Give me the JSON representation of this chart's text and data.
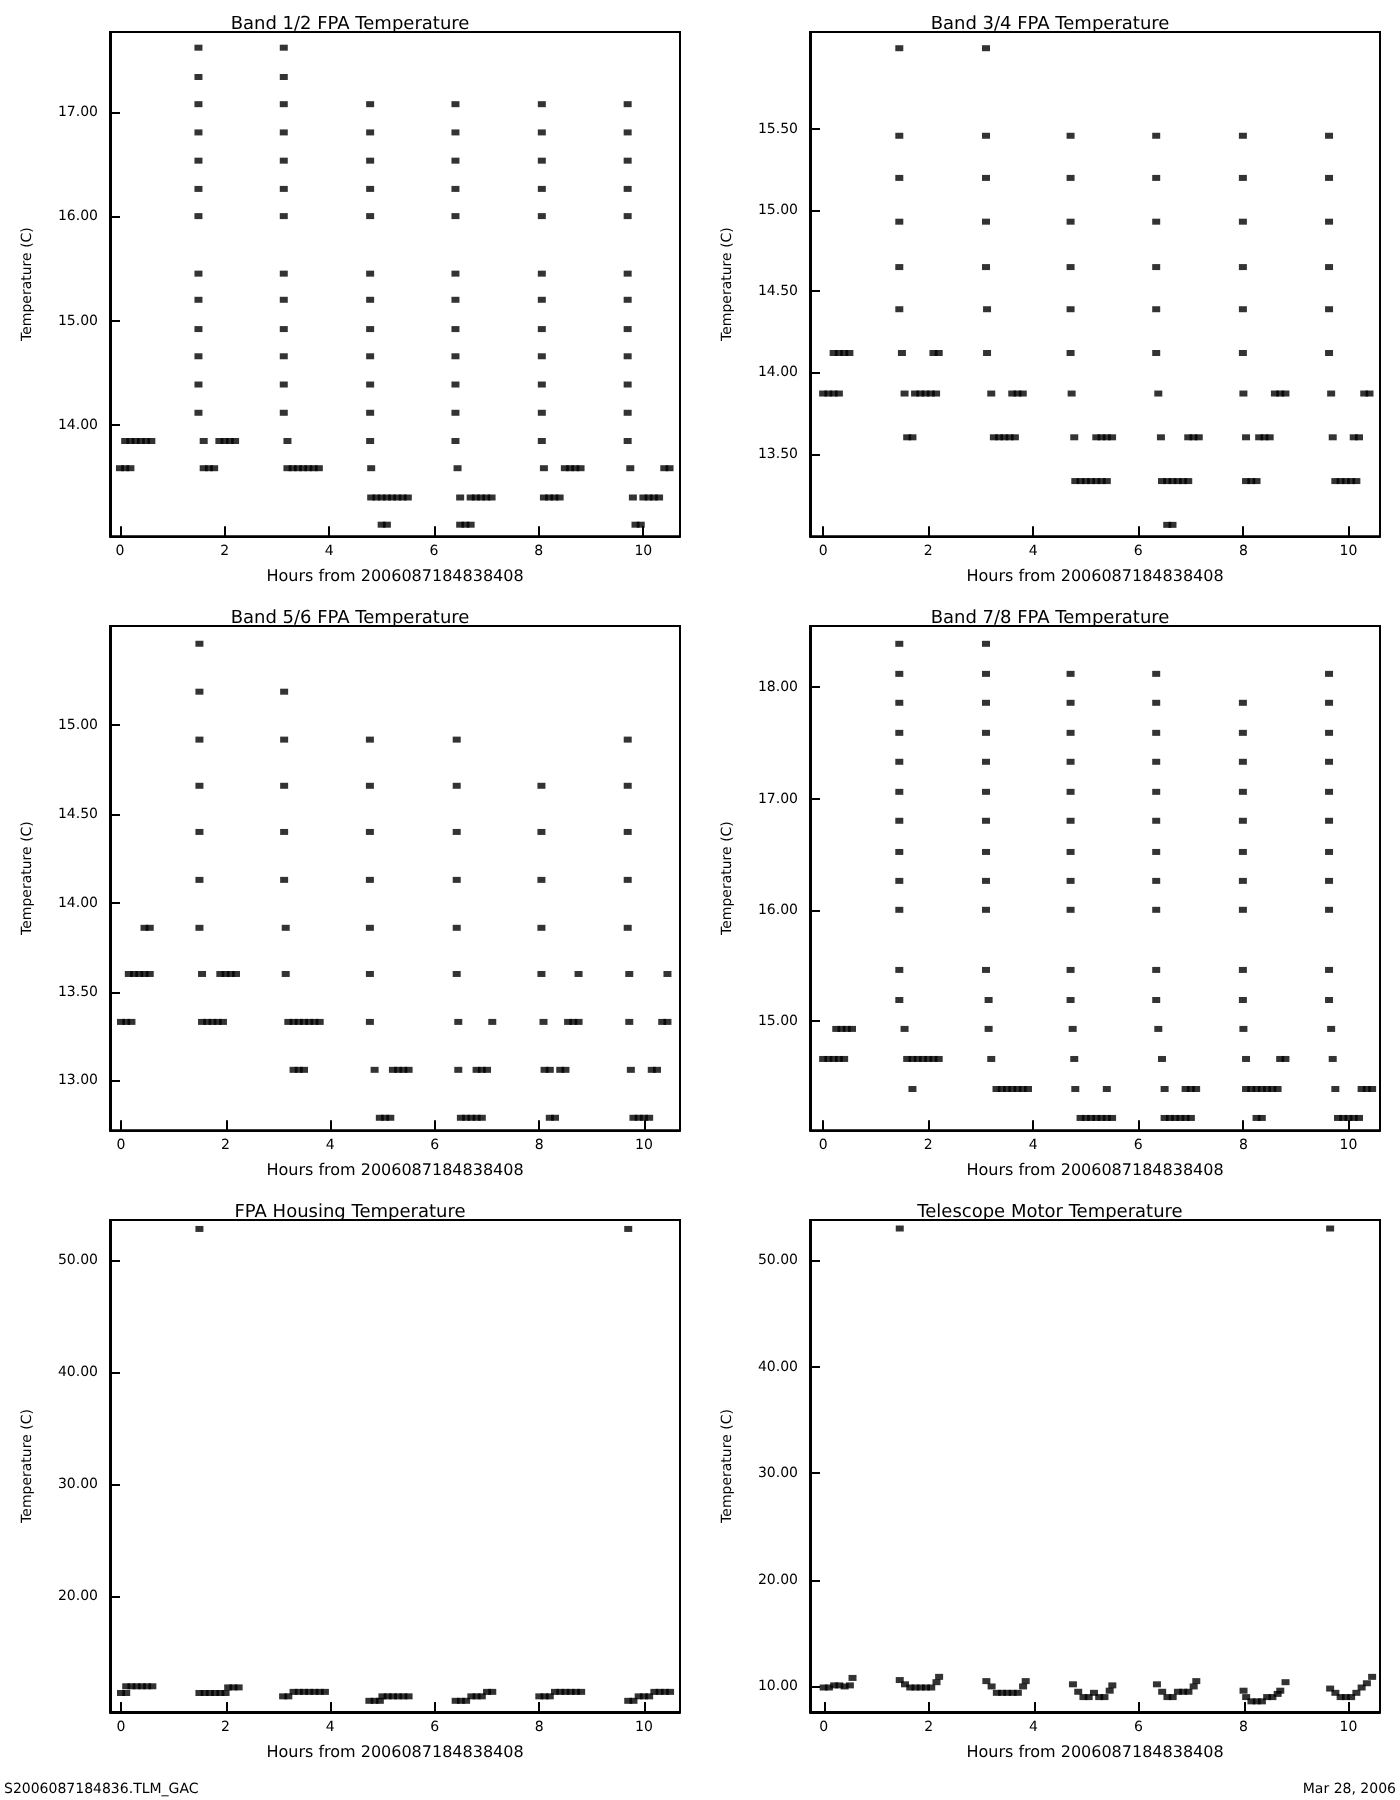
{
  "chart_data": [
    {
      "type": "scatter",
      "title": "Band 1/2 FPA Temperature",
      "xlabel": "Hours from 2006087184838408",
      "ylabel": "Temperature (C)",
      "marker": "square",
      "xlim": [
        -0.19,
        10.7
      ],
      "ylim": [
        12.94,
        17.76
      ],
      "xticks": [
        0,
        2,
        4,
        6,
        8,
        10
      ],
      "yticks": [
        {
          "value": 14,
          "label": "14.00"
        },
        {
          "value": 15,
          "label": "15.00"
        },
        {
          "value": 16,
          "label": "16.00"
        },
        {
          "value": 17,
          "label": "17.00"
        }
      ],
      "series": [
        {
          "color": "#000000",
          "x": [
            0.1,
            0.2,
            0.3,
            0.4,
            0.5,
            0.6
          ],
          "values": [
            13.85,
            13.85,
            13.85,
            13.85,
            13.85,
            13.85
          ]
        },
        {
          "color": "#000000",
          "x": [
            0,
            0.1,
            0.2
          ],
          "values": [
            13.59,
            13.59,
            13.59
          ]
        },
        {
          "color": "#000000",
          "x": [
            1.5,
            1.5,
            1.5,
            1.5,
            1.5,
            1.5,
            1.5,
            1.5,
            1.5,
            1.5,
            1.5,
            1.5,
            1.5
          ],
          "values": [
            17.61,
            17.33,
            17.07,
            16.8,
            16.53,
            16.26,
            16,
            15.45,
            15.2,
            14.92,
            14.66,
            14.39,
            14.12
          ]
        },
        {
          "color": "#000000",
          "x": [
            1.6,
            1.6,
            1.7,
            1.8,
            1.9,
            2.0,
            2.1,
            2.2
          ],
          "values": [
            13.85,
            13.59,
            13.59,
            13.59,
            13.85,
            13.85,
            13.85,
            13.85
          ]
        },
        {
          "color": "#000000",
          "x": [
            3.13,
            3.13,
            3.13,
            3.13,
            3.13,
            3.13,
            3.13,
            3.13,
            3.13,
            3.13,
            3.13,
            3.13,
            3.13
          ],
          "values": [
            17.61,
            17.33,
            17.07,
            16.8,
            16.53,
            16.26,
            16,
            15.45,
            15.2,
            14.92,
            14.66,
            14.39,
            14.12
          ]
        },
        {
          "color": "#000000",
          "x": [
            3.2,
            3.2,
            3.3,
            3.4,
            3.5,
            3.6,
            3.7,
            3.8
          ],
          "values": [
            13.85,
            13.59,
            13.59,
            13.59,
            13.59,
            13.59,
            13.59,
            13.59
          ]
        },
        {
          "color": "#000000",
          "x": [
            4.78,
            4.78,
            4.78,
            4.78,
            4.78,
            4.78,
            4.78,
            4.78,
            4.78,
            4.78,
            4.78,
            4.78
          ],
          "values": [
            17.07,
            16.8,
            16.53,
            16.26,
            16,
            15.45,
            15.2,
            14.92,
            14.66,
            14.39,
            14.12,
            13.85
          ]
        },
        {
          "color": "#000000",
          "x": [
            4.8,
            4.8,
            4.9,
            5.0,
            5.1,
            5.2,
            5.3,
            5.4,
            5.5,
            5.0,
            5.1
          ],
          "values": [
            13.59,
            13.31,
            13.31,
            13.31,
            13.31,
            13.31,
            13.31,
            13.31,
            13.31,
            13.05,
            13.05
          ]
        },
        {
          "color": "#000000",
          "x": [
            6.41,
            6.41,
            6.41,
            6.41,
            6.41,
            6.41,
            6.41,
            6.41,
            6.41,
            6.41,
            6.41,
            6.41
          ],
          "values": [
            17.07,
            16.8,
            16.53,
            16.26,
            16,
            15.45,
            15.2,
            14.92,
            14.66,
            14.39,
            14.12,
            13.85
          ]
        },
        {
          "color": "#000000",
          "x": [
            6.45,
            6.5,
            6.7,
            6.8,
            6.9,
            7.0,
            7.1,
            6.5,
            6.6,
            6.7
          ],
          "values": [
            13.59,
            13.31,
            13.31,
            13.31,
            13.31,
            13.31,
            13.31,
            13.05,
            13.05,
            13.05
          ]
        },
        {
          "color": "#000000",
          "x": [
            8.06,
            8.06,
            8.06,
            8.06,
            8.06,
            8.06,
            8.06,
            8.06,
            8.06,
            8.06,
            8.06,
            8.06
          ],
          "values": [
            17.07,
            16.8,
            16.53,
            16.26,
            16,
            15.45,
            15.2,
            14.92,
            14.66,
            14.39,
            14.12,
            13.85
          ]
        },
        {
          "color": "#000000",
          "x": [
            8.1,
            8.1,
            8.2,
            8.3,
            8.4,
            8.5,
            8.6,
            8.7,
            8.8
          ],
          "values": [
            13.59,
            13.31,
            13.31,
            13.31,
            13.31,
            13.59,
            13.59,
            13.59,
            13.59
          ]
        },
        {
          "color": "#000000",
          "x": [
            9.7,
            9.7,
            9.7,
            9.7,
            9.7,
            9.7,
            9.7,
            9.7,
            9.7,
            9.7,
            9.7,
            9.7
          ],
          "values": [
            17.07,
            16.8,
            16.53,
            16.26,
            16,
            15.45,
            15.2,
            14.92,
            14.66,
            14.39,
            14.12,
            13.85
          ]
        },
        {
          "color": "#000000",
          "x": [
            9.75,
            9.8,
            10.0,
            10.1,
            10.2,
            10.3,
            9.85,
            9.95,
            10.4,
            10.5
          ],
          "values": [
            13.59,
            13.31,
            13.31,
            13.31,
            13.31,
            13.31,
            13.05,
            13.05,
            13.59,
            13.59
          ]
        }
      ]
    },
    {
      "type": "scatter",
      "title": "Band 3/4 FPA Temperature",
      "xlabel": "Hours from 2006087184838408",
      "ylabel": "Temperature (C)",
      "marker": "square",
      "xlim": [
        -0.25,
        10.6
      ],
      "ylim": [
        12.99,
        16.1
      ],
      "xticks": [
        0,
        2,
        4,
        6,
        8,
        10
      ],
      "yticks": [
        {
          "value": 13.5,
          "label": "13.50"
        },
        {
          "value": 14,
          "label": "14.00"
        },
        {
          "value": 14.5,
          "label": "14.50"
        },
        {
          "value": 15,
          "label": "15.00"
        },
        {
          "value": 15.5,
          "label": "15.50"
        }
      ],
      "series": [
        {
          "color": "#000000",
          "x": [
            0,
            0.1,
            0.2,
            0.3
          ],
          "values": [
            13.87,
            13.87,
            13.87,
            13.87
          ]
        },
        {
          "color": "#000000",
          "x": [
            0.2,
            0.3,
            0.4,
            0.5
          ],
          "values": [
            14.12,
            14.12,
            14.12,
            14.12
          ]
        },
        {
          "color": "#000000",
          "x": [
            1.45,
            1.45,
            1.45,
            1.45,
            1.45,
            1.45,
            1.5,
            1.55
          ],
          "values": [
            16,
            15.46,
            15.2,
            14.93,
            14.65,
            14.39,
            14.12,
            13.87
          ]
        },
        {
          "color": "#000000",
          "x": [
            1.6,
            1.7,
            1.75,
            1.85,
            1.95,
            2.05,
            2.15,
            2.1,
            2.2
          ],
          "values": [
            13.6,
            13.6,
            13.87,
            13.87,
            13.87,
            13.87,
            13.87,
            14.12,
            14.12
          ]
        },
        {
          "color": "#000000",
          "x": [
            3.1,
            3.1,
            3.1,
            3.1,
            3.1,
            3.12,
            3.12,
            3.2
          ],
          "values": [
            16,
            15.46,
            15.2,
            14.93,
            14.65,
            14.39,
            14.12,
            13.87
          ]
        },
        {
          "color": "#000000",
          "x": [
            3.25,
            3.35,
            3.45,
            3.55,
            3.65,
            3.6,
            3.7,
            3.8
          ],
          "values": [
            13.6,
            13.6,
            13.6,
            13.6,
            13.6,
            13.87,
            13.87,
            13.87
          ]
        },
        {
          "color": "#000000",
          "x": [
            4.71,
            4.71,
            4.71,
            4.71,
            4.71,
            4.71,
            4.73,
            4.78
          ],
          "values": [
            15.46,
            15.2,
            14.93,
            14.65,
            14.39,
            14.12,
            13.87,
            13.6
          ]
        },
        {
          "color": "#000000",
          "x": [
            4.8,
            4.9,
            5.0,
            5.1,
            5.2,
            5.3,
            5.4,
            5.2,
            5.3,
            5.4,
            5.5
          ],
          "values": [
            13.33,
            13.33,
            13.33,
            13.33,
            13.33,
            13.33,
            13.33,
            13.6,
            13.6,
            13.6,
            13.6
          ]
        },
        {
          "color": "#000000",
          "x": [
            6.34,
            6.34,
            6.34,
            6.34,
            6.34,
            6.34,
            6.38,
            6.43
          ],
          "values": [
            15.46,
            15.2,
            14.93,
            14.65,
            14.39,
            14.12,
            13.87,
            13.6
          ]
        },
        {
          "color": "#000000",
          "x": [
            6.45,
            6.55,
            6.65,
            6.75,
            6.85,
            6.95,
            6.55,
            6.65,
            6.95,
            7.05,
            7.15
          ],
          "values": [
            13.33,
            13.33,
            13.33,
            13.33,
            13.33,
            13.33,
            13.06,
            13.06,
            13.6,
            13.6,
            13.6
          ]
        },
        {
          "color": "#000000",
          "x": [
            7.99,
            7.99,
            7.99,
            7.99,
            7.99,
            7.99,
            8.0,
            8.05
          ],
          "values": [
            15.46,
            15.2,
            14.93,
            14.65,
            14.39,
            14.12,
            13.87,
            13.6
          ]
        },
        {
          "color": "#000000",
          "x": [
            8.05,
            8.15,
            8.25,
            8.3,
            8.4,
            8.5,
            8.6,
            8.7,
            8.8
          ],
          "values": [
            13.33,
            13.33,
            13.33,
            13.6,
            13.6,
            13.6,
            13.87,
            13.87,
            13.87
          ]
        },
        {
          "color": "#000000",
          "x": [
            9.63,
            9.63,
            9.63,
            9.63,
            9.63,
            9.63,
            9.67,
            9.7
          ],
          "values": [
            15.46,
            15.2,
            14.93,
            14.65,
            14.39,
            14.12,
            13.87,
            13.6
          ]
        },
        {
          "color": "#000000",
          "x": [
            9.75,
            9.85,
            9.95,
            10.05,
            10.15,
            10.1,
            10.2,
            10.3,
            10.4
          ],
          "values": [
            13.33,
            13.33,
            13.33,
            13.33,
            13.33,
            13.6,
            13.6,
            13.87,
            13.87
          ]
        }
      ]
    },
    {
      "type": "scatter",
      "title": "Band 5/6 FPA Temperature",
      "xlabel": "Hours from 2006087184838408",
      "ylabel": "Temperature (C)",
      "marker": "square",
      "xlim": [
        -0.21,
        10.69
      ],
      "ylim": [
        12.72,
        15.56
      ],
      "xticks": [
        0,
        2,
        4,
        6,
        8,
        10
      ],
      "yticks": [
        {
          "value": 13,
          "label": "13.00"
        },
        {
          "value": 13.5,
          "label": "13.50"
        },
        {
          "value": 14,
          "label": "14.00"
        },
        {
          "value": 14.5,
          "label": "14.50"
        },
        {
          "value": 15,
          "label": "15.00"
        }
      ],
      "series": [
        {
          "color": "#000000",
          "x": [
            0,
            0.1,
            0.2
          ],
          "values": [
            13.33,
            13.33,
            13.33
          ]
        },
        {
          "color": "#000000",
          "x": [
            0.15,
            0.25,
            0.35,
            0.45,
            0.55,
            0.45,
            0.55
          ],
          "values": [
            13.6,
            13.6,
            13.6,
            13.6,
            13.6,
            13.86,
            13.86
          ]
        },
        {
          "color": "#000000",
          "x": [
            1.5,
            1.5,
            1.5,
            1.5,
            1.5,
            1.5,
            1.5,
            1.55
          ],
          "values": [
            15.46,
            15.19,
            14.92,
            14.66,
            14.4,
            14.13,
            13.86,
            13.6
          ]
        },
        {
          "color": "#000000",
          "x": [
            1.55,
            1.65,
            1.75,
            1.85,
            1.95,
            1.9,
            2.0,
            2.1,
            2.2
          ],
          "values": [
            13.33,
            13.33,
            13.33,
            13.33,
            13.33,
            13.6,
            13.6,
            13.6,
            13.6
          ]
        },
        {
          "color": "#000000",
          "x": [
            3.12,
            3.12,
            3.12,
            3.12,
            3.12,
            3.15,
            3.15
          ],
          "values": [
            15.19,
            14.92,
            14.66,
            14.4,
            14.13,
            13.86,
            13.6
          ]
        },
        {
          "color": "#000000",
          "x": [
            3.2,
            3.3,
            3.4,
            3.5,
            3.6,
            3.7,
            3.8,
            3.3,
            3.4,
            3.5
          ],
          "values": [
            13.33,
            13.33,
            13.33,
            13.33,
            13.33,
            13.33,
            13.33,
            13.06,
            13.06,
            13.06
          ]
        },
        {
          "color": "#000000",
          "x": [
            4.76,
            4.76,
            4.76,
            4.76,
            4.76,
            4.76,
            4.76,
            4.85
          ],
          "values": [
            14.92,
            14.66,
            14.4,
            14.13,
            13.86,
            13.6,
            13.33,
            13.06
          ]
        },
        {
          "color": "#000000",
          "x": [
            4.95,
            5.05,
            5.15,
            5.2,
            5.3,
            5.4,
            5.5
          ],
          "values": [
            12.79,
            12.79,
            12.79,
            13.06,
            13.06,
            13.06,
            13.06
          ]
        },
        {
          "color": "#000000",
          "x": [
            6.42,
            6.42,
            6.42,
            6.42,
            6.42,
            6.42,
            6.45,
            6.45
          ],
          "values": [
            14.92,
            14.66,
            14.4,
            14.13,
            13.86,
            13.6,
            13.33,
            13.06
          ]
        },
        {
          "color": "#000000",
          "x": [
            6.5,
            6.6,
            6.7,
            6.8,
            6.9,
            6.8,
            6.9,
            7.0,
            7.1
          ],
          "values": [
            12.79,
            12.79,
            12.79,
            12.79,
            12.79,
            13.06,
            13.06,
            13.06,
            13.33
          ]
        },
        {
          "color": "#000000",
          "x": [
            8.04,
            8.04,
            8.04,
            8.04,
            8.04,
            8.08
          ],
          "values": [
            14.66,
            14.4,
            14.13,
            13.86,
            13.6,
            13.33
          ]
        },
        {
          "color": "#000000",
          "x": [
            8.1,
            8.2,
            8.2,
            8.3,
            8.4,
            8.5,
            8.55,
            8.65,
            8.75,
            8.75
          ],
          "values": [
            13.06,
            13.06,
            12.79,
            12.79,
            13.06,
            13.06,
            13.33,
            13.33,
            13.33,
            13.6
          ]
        },
        {
          "color": "#000000",
          "x": [
            9.69,
            9.69,
            9.69,
            9.69,
            9.69,
            9.72,
            9.72,
            9.75
          ],
          "values": [
            14.92,
            14.66,
            14.4,
            14.13,
            13.86,
            13.6,
            13.33,
            13.06
          ]
        },
        {
          "color": "#000000",
          "x": [
            9.8,
            9.9,
            10.0,
            10.1,
            10.15,
            10.25,
            10.35,
            10.45,
            10.45
          ],
          "values": [
            12.79,
            12.79,
            12.79,
            12.79,
            13.06,
            13.06,
            13.33,
            13.33,
            13.6
          ]
        }
      ]
    },
    {
      "type": "scatter",
      "title": "Band 7/8 FPA Temperature",
      "xlabel": "Hours from 2006087184838408",
      "ylabel": "Temperature (C)",
      "marker": "square",
      "xlim": [
        -0.25,
        10.6
      ],
      "ylim": [
        14.02,
        18.55
      ],
      "xticks": [
        0,
        2,
        4,
        6,
        8,
        10
      ],
      "yticks": [
        {
          "value": 15,
          "label": "15.00"
        },
        {
          "value": 16,
          "label": "16.00"
        },
        {
          "value": 17,
          "label": "17.00"
        },
        {
          "value": 18,
          "label": "18.00"
        }
      ],
      "series": [
        {
          "color": "#000000",
          "x": [
            0,
            0.1,
            0.2,
            0.3,
            0.4
          ],
          "values": [
            14.66,
            14.66,
            14.66,
            14.66,
            14.66
          ]
        },
        {
          "color": "#000000",
          "x": [
            0.25,
            0.35,
            0.45,
            0.55
          ],
          "values": [
            14.93,
            14.93,
            14.93,
            14.93
          ]
        },
        {
          "color": "#000000",
          "x": [
            1.45,
            1.45,
            1.45,
            1.45,
            1.45,
            1.45,
            1.45,
            1.45,
            1.45,
            1.45,
            1.45,
            1.45
          ],
          "values": [
            18.39,
            18.12,
            17.86,
            17.59,
            17.33,
            17.06,
            16.8,
            16.52,
            16.26,
            16,
            15.46,
            15.19
          ]
        },
        {
          "color": "#000000",
          "x": [
            1.55,
            1.6,
            1.7,
            1.8,
            1.9,
            2.0,
            2.1,
            2.2,
            1.7
          ],
          "values": [
            14.93,
            14.66,
            14.66,
            14.66,
            14.66,
            14.66,
            14.66,
            14.66,
            14.39
          ]
        },
        {
          "color": "#000000",
          "x": [
            3.1,
            3.1,
            3.1,
            3.1,
            3.1,
            3.1,
            3.1,
            3.1,
            3.1,
            3.1,
            3.1,
            3.15,
            3.15,
            3.2
          ],
          "values": [
            18.39,
            18.12,
            17.86,
            17.59,
            17.33,
            17.06,
            16.8,
            16.52,
            16.26,
            16,
            15.46,
            15.19,
            14.93,
            14.66
          ]
        },
        {
          "color": "#000000",
          "x": [
            3.3,
            3.4,
            3.5,
            3.6,
            3.7,
            3.8,
            3.9
          ],
          "values": [
            14.39,
            14.39,
            14.39,
            14.39,
            14.39,
            14.39,
            14.39
          ]
        },
        {
          "color": "#000000",
          "x": [
            4.71,
            4.71,
            4.71,
            4.71,
            4.71,
            4.71,
            4.71,
            4.71,
            4.71,
            4.71,
            4.71,
            4.75,
            4.78,
            4.8
          ],
          "values": [
            18.12,
            17.86,
            17.59,
            17.33,
            17.06,
            16.8,
            16.52,
            16.26,
            16,
            15.46,
            15.19,
            14.93,
            14.66,
            14.39
          ]
        },
        {
          "color": "#000000",
          "x": [
            4.9,
            5.0,
            5.1,
            5.2,
            5.3,
            5.4,
            5.5,
            5.4
          ],
          "values": [
            14.13,
            14.13,
            14.13,
            14.13,
            14.13,
            14.13,
            14.13,
            14.39
          ]
        },
        {
          "color": "#000000",
          "x": [
            6.34,
            6.34,
            6.34,
            6.34,
            6.34,
            6.34,
            6.34,
            6.34,
            6.34,
            6.34,
            6.34,
            6.38,
            6.45,
            6.5
          ],
          "values": [
            18.12,
            17.86,
            17.59,
            17.33,
            17.06,
            16.8,
            16.52,
            16.26,
            16,
            15.46,
            15.19,
            14.93,
            14.66,
            14.39
          ]
        },
        {
          "color": "#000000",
          "x": [
            6.5,
            6.6,
            6.7,
            6.8,
            6.9,
            7.0,
            6.9,
            7.0,
            7.1
          ],
          "values": [
            14.13,
            14.13,
            14.13,
            14.13,
            14.13,
            14.13,
            14.39,
            14.39,
            14.39
          ]
        },
        {
          "color": "#000000",
          "x": [
            7.99,
            7.99,
            7.99,
            7.99,
            7.99,
            7.99,
            7.99,
            7.99,
            7.99,
            7.99,
            8.0,
            8.05
          ],
          "values": [
            17.86,
            17.59,
            17.33,
            17.06,
            16.8,
            16.52,
            16.26,
            16,
            15.46,
            15.19,
            14.93,
            14.66
          ]
        },
        {
          "color": "#000000",
          "x": [
            8.05,
            8.15,
            8.25,
            8.35,
            8.45,
            8.55,
            8.65,
            8.25,
            8.35,
            8.7,
            8.8
          ],
          "values": [
            14.39,
            14.39,
            14.39,
            14.39,
            14.39,
            14.39,
            14.39,
            14.13,
            14.13,
            14.66,
            14.66
          ]
        },
        {
          "color": "#000000",
          "x": [
            9.63,
            9.63,
            9.63,
            9.63,
            9.63,
            9.63,
            9.63,
            9.63,
            9.63,
            9.63,
            9.63,
            9.67,
            9.7,
            9.75
          ],
          "values": [
            18.12,
            17.86,
            17.59,
            17.33,
            17.06,
            16.8,
            16.52,
            16.26,
            16,
            15.46,
            15.19,
            14.93,
            14.66,
            14.39
          ]
        },
        {
          "color": "#000000",
          "x": [
            9.8,
            9.9,
            10.0,
            10.1,
            10.2,
            10.25,
            10.35,
            10.45
          ],
          "values": [
            14.13,
            14.13,
            14.13,
            14.13,
            14.13,
            14.39,
            14.39,
            14.39
          ]
        }
      ]
    },
    {
      "type": "scatter",
      "title": "FPA Housing Temperature",
      "xlabel": "Hours from 2006087184838408",
      "ylabel": "Temperature (C)",
      "marker": "square",
      "xlim": [
        -0.21,
        10.69
      ],
      "ylim": [
        9.6,
        53.6
      ],
      "xticks": [
        0,
        2,
        4,
        6,
        8,
        10
      ],
      "yticks": [
        {
          "value": 20,
          "label": "20.00"
        },
        {
          "value": 30,
          "label": "30.00"
        },
        {
          "value": 40,
          "label": "40.00"
        },
        {
          "value": 50,
          "label": "50.00"
        }
      ],
      "annotations": [
        "S2006087184836.TLM_GAC"
      ],
      "series": [
        {
          "color": "#000000",
          "x": [
            1.5,
            9.7
          ],
          "values": [
            52.8,
            52.8
          ]
        },
        {
          "color": "#000000",
          "x": [
            0,
            0.1,
            0.1,
            0.2,
            0.3,
            0.4,
            0.5,
            0.6
          ],
          "values": [
            11.3,
            11.3,
            11.9,
            11.9,
            11.9,
            11.9,
            11.9,
            11.9
          ]
        },
        {
          "color": "#000000",
          "x": [
            1.5,
            1.6,
            1.7,
            1.8,
            1.9,
            2.0,
            2.05,
            2.15,
            2.25
          ],
          "values": [
            11.3,
            11.3,
            11.3,
            11.3,
            11.3,
            11.3,
            11.8,
            11.8,
            11.8
          ]
        },
        {
          "color": "#000000",
          "x": [
            3.1,
            3.2,
            3.3,
            3.4,
            3.5,
            3.6,
            3.7,
            3.8,
            3.9
          ],
          "values": [
            11,
            11,
            11.4,
            11.4,
            11.4,
            11.4,
            11.4,
            11.4,
            11.4
          ]
        },
        {
          "color": "#000000",
          "x": [
            4.75,
            4.85,
            4.95,
            5.0,
            5.1,
            5.2,
            5.3,
            5.4,
            5.5
          ],
          "values": [
            10.6,
            10.6,
            10.6,
            11,
            11,
            11,
            11,
            11,
            11
          ]
        },
        {
          "color": "#000000",
          "x": [
            6.4,
            6.5,
            6.6,
            6.7,
            6.8,
            6.9,
            7.0,
            7.1
          ],
          "values": [
            10.6,
            10.6,
            10.6,
            11,
            11,
            11,
            11.4,
            11.4
          ]
        },
        {
          "color": "#000000",
          "x": [
            8.0,
            8.1,
            8.2,
            8.3,
            8.4,
            8.5,
            8.6,
            8.7,
            8.8
          ],
          "values": [
            11,
            11,
            11,
            11.4,
            11.4,
            11.4,
            11.4,
            11.4,
            11.4
          ]
        },
        {
          "color": "#000000",
          "x": [
            9.7,
            9.8,
            9.9,
            10.0,
            10.1,
            10.2,
            10.3,
            10.4,
            10.5
          ],
          "values": [
            10.6,
            10.6,
            11,
            11,
            11,
            11.4,
            11.4,
            11.4,
            11.4
          ]
        }
      ]
    },
    {
      "type": "scatter",
      "title": "Telescope Motor Temperature",
      "xlabel": "Hours from 2006087184838408",
      "ylabel": "Temperature (C)",
      "marker": "square",
      "xlim": [
        -0.26,
        10.6
      ],
      "ylim": [
        7.6,
        53.8
      ],
      "xticks": [
        0,
        2,
        4,
        6,
        8,
        10
      ],
      "yticks": [
        {
          "value": 10,
          "label": "10.00"
        },
        {
          "value": 20,
          "label": "20.00"
        },
        {
          "value": 30,
          "label": "30.00"
        },
        {
          "value": 40,
          "label": "40.00"
        },
        {
          "value": 50,
          "label": "50.00"
        }
      ],
      "annotations": [
        "Mar 28, 2006"
      ],
      "series": [
        {
          "color": "#000000",
          "x": [
            1.45,
            9.65
          ],
          "values": [
            53,
            53
          ]
        },
        {
          "color": "#000000",
          "x": [
            0,
            0.1,
            0.2,
            0.3,
            0.4,
            0.5,
            0.55
          ],
          "values": [
            9.9,
            9.9,
            10.1,
            10.1,
            10.0,
            10.1,
            10.8
          ]
        },
        {
          "color": "#000000",
          "x": [
            1.45,
            1.55,
            1.65,
            1.75,
            1.85,
            1.95,
            2.05,
            2.15,
            2.2
          ],
          "values": [
            10.6,
            10.2,
            9.9,
            9.9,
            9.9,
            9.9,
            9.9,
            10.4,
            10.9
          ]
        },
        {
          "color": "#000000",
          "x": [
            3.1,
            3.2,
            3.3,
            3.4,
            3.5,
            3.6,
            3.7,
            3.8,
            3.85
          ],
          "values": [
            10.5,
            10.0,
            9.4,
            9.4,
            9.4,
            9.4,
            9.4,
            10.0,
            10.5
          ]
        },
        {
          "color": "#000000",
          "x": [
            4.75,
            4.85,
            4.95,
            5.05,
            5.15,
            5.25,
            5.35,
            5.45,
            5.5
          ],
          "values": [
            10.2,
            9.5,
            9,
            9,
            9.4,
            9,
            9,
            9.6,
            10.1
          ]
        },
        {
          "color": "#000000",
          "x": [
            6.35,
            6.45,
            6.55,
            6.65,
            6.75,
            6.85,
            6.95,
            7.05,
            7.1
          ],
          "values": [
            10.2,
            9.5,
            9,
            9,
            9.5,
            9.5,
            9.5,
            10,
            10.5
          ]
        },
        {
          "color": "#000000",
          "x": [
            8.0,
            8.05,
            8.15,
            8.25,
            8.35,
            8.45,
            8.55,
            8.65,
            8.7,
            8.8
          ],
          "values": [
            9.6,
            9,
            8.6,
            8.6,
            8.6,
            9,
            9,
            9.3,
            9.6,
            10.4
          ]
        },
        {
          "color": "#000000",
          "x": [
            9.65,
            9.75,
            9.85,
            9.95,
            10.05,
            10.15,
            10.25,
            10.35,
            10.45
          ],
          "values": [
            9.8,
            9.4,
            9,
            9,
            9,
            9.4,
            9.9,
            10.3,
            10.9
          ]
        }
      ]
    }
  ]
}
